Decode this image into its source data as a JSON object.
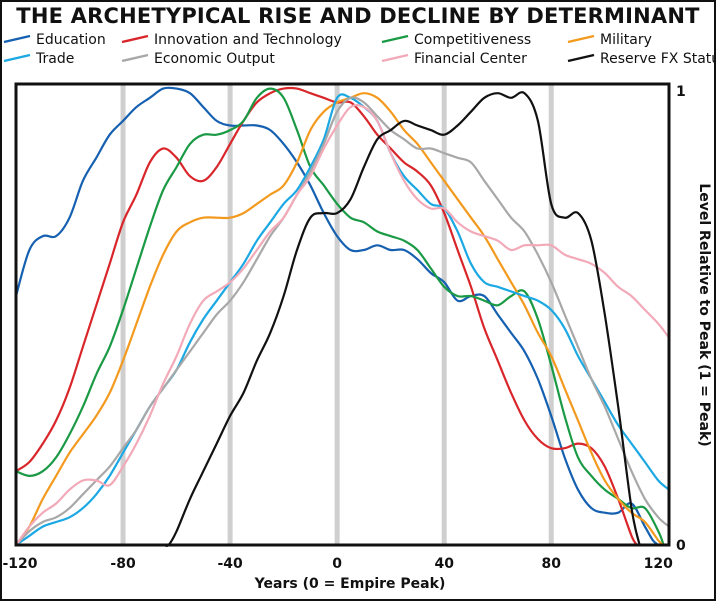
{
  "chart_data": {
    "type": "line",
    "title": "THE ARCHETYPICAL RISE AND DECLINE BY DETERMINANT",
    "xlabel": "Years (0 = Empire Peak)",
    "ylabel": "Level Relative to Peak (1 = Peak)",
    "xlim": [
      -120,
      124
    ],
    "ylim": [
      0,
      1
    ],
    "x_ticks": [
      -120,
      -80,
      -40,
      0,
      40,
      80,
      120
    ],
    "x_tick_labels": [
      "-120",
      "-80",
      "-40",
      "0",
      "40",
      "80",
      "120"
    ],
    "y_tick_labels": [
      "1",
      "0"
    ],
    "vertical_gridlines": [
      -80,
      -40,
      0,
      40,
      80
    ],
    "legend_position": "top",
    "series": [
      {
        "name": "Education",
        "color": "#1560b0",
        "x": [
          -120,
          -115,
          -110,
          -105,
          -100,
          -95,
          -90,
          -85,
          -80,
          -75,
          -70,
          -65,
          -60,
          -55,
          -50,
          -45,
          -40,
          -35,
          -30,
          -25,
          -20,
          -15,
          -10,
          -5,
          0,
          5,
          10,
          15,
          20,
          25,
          30,
          35,
          40,
          45,
          50,
          55,
          60,
          65,
          70,
          75,
          80,
          85,
          90,
          95,
          100,
          105,
          110,
          115,
          118,
          120
        ],
        "y": [
          0.54,
          0.64,
          0.67,
          0.67,
          0.71,
          0.79,
          0.84,
          0.89,
          0.92,
          0.95,
          0.97,
          0.99,
          0.99,
          0.98,
          0.95,
          0.92,
          0.91,
          0.91,
          0.91,
          0.9,
          0.87,
          0.83,
          0.78,
          0.72,
          0.67,
          0.64,
          0.64,
          0.65,
          0.64,
          0.64,
          0.62,
          0.59,
          0.57,
          0.53,
          0.54,
          0.54,
          0.5,
          0.46,
          0.42,
          0.36,
          0.28,
          0.19,
          0.12,
          0.08,
          0.07,
          0.07,
          0.09,
          0.04,
          0.01,
          0.0
        ]
      },
      {
        "name": "Innovation and Technology",
        "color": "#d9262a",
        "x": [
          -120,
          -115,
          -110,
          -105,
          -100,
          -95,
          -90,
          -85,
          -80,
          -75,
          -70,
          -65,
          -60,
          -55,
          -50,
          -45,
          -40,
          -35,
          -30,
          -25,
          -20,
          -15,
          -10,
          -5,
          0,
          5,
          10,
          15,
          20,
          25,
          30,
          35,
          40,
          45,
          50,
          55,
          60,
          65,
          70,
          75,
          80,
          85,
          90,
          95,
          100,
          105,
          110,
          112
        ],
        "y": [
          0.16,
          0.18,
          0.22,
          0.27,
          0.34,
          0.43,
          0.52,
          0.61,
          0.7,
          0.76,
          0.83,
          0.86,
          0.84,
          0.8,
          0.79,
          0.82,
          0.87,
          0.92,
          0.96,
          0.98,
          0.99,
          0.99,
          0.98,
          0.97,
          0.96,
          0.96,
          0.93,
          0.89,
          0.86,
          0.83,
          0.81,
          0.78,
          0.72,
          0.64,
          0.56,
          0.47,
          0.4,
          0.33,
          0.27,
          0.23,
          0.21,
          0.21,
          0.22,
          0.21,
          0.17,
          0.1,
          0.02,
          0.0
        ]
      },
      {
        "name": "Competitiveness",
        "color": "#1a9a44",
        "x": [
          -120,
          -115,
          -110,
          -105,
          -100,
          -95,
          -90,
          -85,
          -80,
          -75,
          -70,
          -65,
          -60,
          -55,
          -50,
          -45,
          -40,
          -35,
          -30,
          -25,
          -20,
          -15,
          -10,
          -5,
          0,
          5,
          10,
          15,
          20,
          25,
          30,
          35,
          40,
          45,
          50,
          55,
          60,
          65,
          70,
          75,
          80,
          85,
          90,
          95,
          100,
          105,
          110,
          115,
          120,
          122
        ],
        "y": [
          0.16,
          0.15,
          0.16,
          0.19,
          0.24,
          0.3,
          0.37,
          0.43,
          0.51,
          0.6,
          0.69,
          0.77,
          0.82,
          0.87,
          0.89,
          0.89,
          0.9,
          0.92,
          0.97,
          0.99,
          0.97,
          0.9,
          0.82,
          0.78,
          0.74,
          0.71,
          0.7,
          0.68,
          0.67,
          0.66,
          0.64,
          0.6,
          0.56,
          0.54,
          0.54,
          0.53,
          0.52,
          0.54,
          0.55,
          0.49,
          0.39,
          0.28,
          0.19,
          0.15,
          0.12,
          0.1,
          0.08,
          0.08,
          0.03,
          0.0
        ]
      },
      {
        "name": "Military",
        "color": "#f39a1e",
        "x": [
          -120,
          -115,
          -110,
          -105,
          -100,
          -95,
          -90,
          -85,
          -80,
          -75,
          -70,
          -65,
          -60,
          -55,
          -50,
          -45,
          -40,
          -35,
          -30,
          -25,
          -20,
          -15,
          -10,
          -5,
          0,
          5,
          10,
          15,
          20,
          25,
          30,
          35,
          40,
          45,
          50,
          55,
          60,
          65,
          70,
          75,
          80,
          85,
          90,
          95,
          100,
          105,
          110,
          115,
          120,
          122
        ],
        "y": [
          0.0,
          0.04,
          0.1,
          0.15,
          0.2,
          0.24,
          0.28,
          0.33,
          0.4,
          0.48,
          0.56,
          0.63,
          0.68,
          0.7,
          0.71,
          0.71,
          0.71,
          0.72,
          0.74,
          0.76,
          0.78,
          0.83,
          0.9,
          0.94,
          0.96,
          0.97,
          0.98,
          0.97,
          0.94,
          0.9,
          0.87,
          0.83,
          0.79,
          0.75,
          0.71,
          0.67,
          0.62,
          0.57,
          0.52,
          0.46,
          0.41,
          0.34,
          0.27,
          0.2,
          0.14,
          0.1,
          0.07,
          0.05,
          0.01,
          0.0
        ]
      },
      {
        "name": "Trade",
        "color": "#1ba8e3",
        "x": [
          -120,
          -115,
          -110,
          -105,
          -100,
          -95,
          -90,
          -85,
          -80,
          -75,
          -70,
          -65,
          -60,
          -55,
          -50,
          -45,
          -40,
          -35,
          -30,
          -25,
          -20,
          -15,
          -10,
          -5,
          0,
          5,
          10,
          15,
          20,
          25,
          30,
          35,
          40,
          45,
          50,
          55,
          60,
          65,
          70,
          75,
          80,
          85,
          90,
          95,
          100,
          105,
          110,
          115,
          120,
          124
        ],
        "y": [
          0.0,
          0.02,
          0.04,
          0.05,
          0.06,
          0.08,
          0.11,
          0.15,
          0.2,
          0.25,
          0.3,
          0.34,
          0.38,
          0.44,
          0.49,
          0.53,
          0.57,
          0.61,
          0.66,
          0.7,
          0.74,
          0.77,
          0.82,
          0.88,
          0.97,
          0.97,
          0.95,
          0.92,
          0.85,
          0.8,
          0.77,
          0.74,
          0.73,
          0.68,
          0.61,
          0.57,
          0.56,
          0.55,
          0.54,
          0.53,
          0.51,
          0.47,
          0.41,
          0.36,
          0.31,
          0.26,
          0.22,
          0.18,
          0.14,
          0.12
        ]
      },
      {
        "name": "Economic Output",
        "color": "#a8a8a8",
        "x": [
          -120,
          -115,
          -110,
          -105,
          -100,
          -95,
          -90,
          -85,
          -80,
          -75,
          -70,
          -65,
          -60,
          -55,
          -50,
          -45,
          -40,
          -35,
          -30,
          -25,
          -20,
          -15,
          -10,
          -5,
          0,
          5,
          10,
          15,
          20,
          25,
          30,
          35,
          40,
          45,
          50,
          55,
          60,
          65,
          70,
          75,
          80,
          85,
          90,
          95,
          100,
          105,
          110,
          115,
          120,
          124
        ],
        "y": [
          0.0,
          0.03,
          0.05,
          0.06,
          0.08,
          0.11,
          0.14,
          0.17,
          0.21,
          0.25,
          0.3,
          0.34,
          0.38,
          0.42,
          0.46,
          0.5,
          0.53,
          0.57,
          0.62,
          0.67,
          0.71,
          0.76,
          0.81,
          0.87,
          0.94,
          0.97,
          0.96,
          0.93,
          0.9,
          0.88,
          0.86,
          0.86,
          0.85,
          0.84,
          0.83,
          0.79,
          0.75,
          0.71,
          0.68,
          0.63,
          0.57,
          0.5,
          0.43,
          0.36,
          0.3,
          0.23,
          0.16,
          0.1,
          0.06,
          0.04
        ]
      },
      {
        "name": "Financial Center",
        "color": "#f2a9b8",
        "x": [
          -120,
          -115,
          -110,
          -105,
          -100,
          -95,
          -90,
          -85,
          -80,
          -75,
          -70,
          -65,
          -60,
          -55,
          -50,
          -45,
          -40,
          -35,
          -30,
          -25,
          -20,
          -15,
          -10,
          -5,
          0,
          5,
          10,
          15,
          20,
          25,
          30,
          35,
          40,
          45,
          50,
          55,
          60,
          65,
          70,
          75,
          80,
          85,
          90,
          95,
          100,
          105,
          110,
          115,
          120,
          124
        ],
        "y": [
          0.0,
          0.04,
          0.07,
          0.09,
          0.12,
          0.14,
          0.14,
          0.13,
          0.17,
          0.22,
          0.28,
          0.35,
          0.41,
          0.48,
          0.53,
          0.55,
          0.57,
          0.6,
          0.64,
          0.68,
          0.71,
          0.76,
          0.8,
          0.86,
          0.91,
          0.95,
          0.95,
          0.92,
          0.85,
          0.79,
          0.75,
          0.73,
          0.73,
          0.7,
          0.68,
          0.67,
          0.66,
          0.64,
          0.65,
          0.65,
          0.65,
          0.63,
          0.62,
          0.61,
          0.59,
          0.56,
          0.54,
          0.51,
          0.48,
          0.45
        ]
      },
      {
        "name": "Reserve FX Status",
        "color": "#111111",
        "x": [
          -120,
          -90,
          -75,
          -70,
          -65,
          -63,
          -60,
          -55,
          -50,
          -45,
          -40,
          -35,
          -30,
          -25,
          -20,
          -15,
          -10,
          -5,
          0,
          5,
          10,
          15,
          20,
          25,
          30,
          35,
          40,
          45,
          50,
          55,
          60,
          65,
          70,
          75,
          80,
          85,
          90,
          95,
          100,
          105,
          110,
          113
        ],
        "y": [
          0.0,
          0.0,
          0.0,
          0.0,
          0.0,
          0.0,
          0.03,
          0.1,
          0.16,
          0.22,
          0.28,
          0.33,
          0.4,
          0.46,
          0.54,
          0.64,
          0.71,
          0.72,
          0.72,
          0.75,
          0.82,
          0.88,
          0.9,
          0.92,
          0.91,
          0.9,
          0.89,
          0.91,
          0.94,
          0.97,
          0.98,
          0.97,
          0.98,
          0.92,
          0.74,
          0.71,
          0.72,
          0.66,
          0.5,
          0.3,
          0.08,
          0.0
        ]
      }
    ]
  }
}
